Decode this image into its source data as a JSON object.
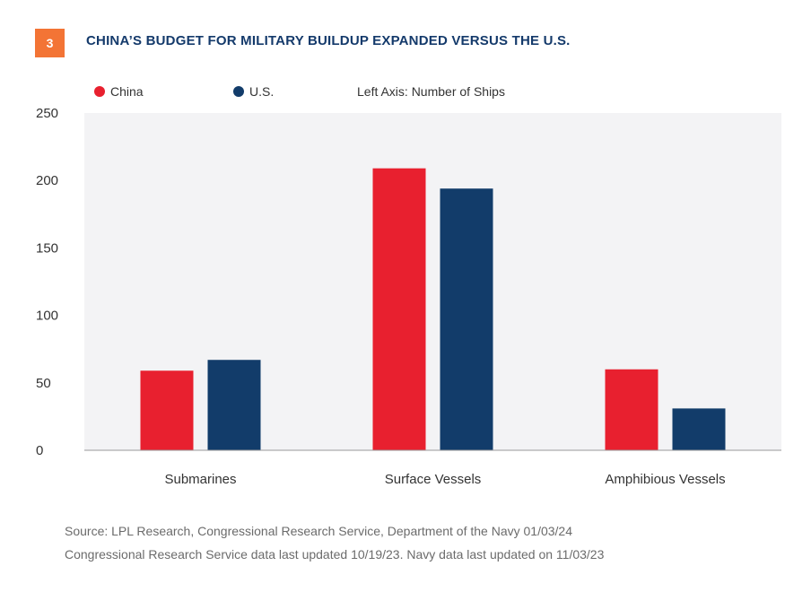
{
  "figure_number": "3",
  "title": "CHINA’S BUDGET FOR MILITARY BUILDUP EXPANDED VERSUS THE U.S.",
  "axis_note": "Left Axis: Number of Ships",
  "colors": {
    "china": "#e8202f",
    "us": "#123c6a",
    "plot_bg": "#f3f3f5",
    "badge": "#f37435"
  },
  "chart_data": {
    "type": "bar",
    "categories": [
      "Submarines",
      "Surface Vessels",
      "Amphibious Vessels"
    ],
    "series": [
      {
        "name": "China",
        "values": [
          59,
          209,
          60
        ]
      },
      {
        "name": "U.S.",
        "values": [
          67,
          194,
          31
        ]
      }
    ],
    "ylim": [
      0,
      250
    ],
    "yticks": [
      "0",
      "50",
      "100",
      "150",
      "200",
      "250"
    ],
    "legend_position": "top-left",
    "grid": false
  },
  "source_lines": [
    "Source: LPL Research, Congressional Research Service, Department of the Navy 01/03/24",
    "Congressional Research Service data last updated 10/19/23. Navy data last updated on 11/03/23"
  ]
}
